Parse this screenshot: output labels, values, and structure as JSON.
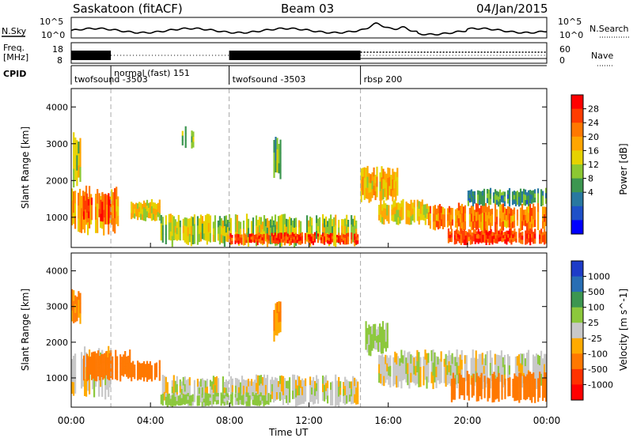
{
  "header": {
    "station": "Saskatoon (fitACF)",
    "beam": "Beam 03",
    "date": "04/Jan/2015"
  },
  "aux_panel": {
    "nsky_label": "N.Sky",
    "nsky_ticks": [
      "10^5",
      "10^0"
    ],
    "nsearch_label": "N.Search",
    "nsearch_ticks": [
      "10^5",
      "10^0"
    ],
    "freq_label": "Freq.",
    "freq_unit": "[MHz]",
    "freq_ticks": [
      "18",
      "8"
    ],
    "nave_label": "Nave",
    "nave_ticks": [
      "60",
      "0"
    ],
    "cpid_label": "CPID",
    "cpid_segments": [
      {
        "name": "twofsound -3503",
        "start_h": 0.0,
        "end_h": 2.0
      },
      {
        "name": "normal (fast) 151",
        "start_h": 2.0,
        "end_h": 7.97
      },
      {
        "name": "twofsound -3503",
        "start_h": 7.97,
        "end_h": 14.6
      },
      {
        "name": "rbsp 200",
        "start_h": 14.6,
        "end_h": 24.0
      }
    ]
  },
  "power_colorbar": {
    "label": "Power [dB]",
    "ticks": [
      "28",
      "24",
      "20",
      "16",
      "12",
      "8",
      "4"
    ],
    "colors": [
      "#ff0000",
      "#ff3c00",
      "#ff7800",
      "#ffa500",
      "#e6d200",
      "#8cc832",
      "#3c9650",
      "#2878a0",
      "#1e50c8",
      "#0000ff"
    ]
  },
  "velocity_colorbar": {
    "label": "Velocity [m s^-1]",
    "ticks": [
      "1000",
      "500",
      "100",
      "25",
      "-25",
      "-100",
      "-500",
      "-1000"
    ],
    "colors": [
      "#1e3cc8",
      "#286eb4",
      "#3c9650",
      "#8cc83c",
      "#c8c8c8",
      "#ffaa00",
      "#ff7800",
      "#ff3200",
      "#ff0000"
    ]
  },
  "chart_data": [
    {
      "type": "heatmap",
      "title": "Power",
      "xlabel": "Time UT",
      "ylabel": "Slant Range [km]",
      "x_ticks": [
        "00:00",
        "04:00",
        "08:00",
        "12:00",
        "16:00",
        "20:00",
        "00:00"
      ],
      "xlim_hours": [
        0,
        24
      ],
      "ylim": [
        180,
        4500
      ],
      "y_ticks": [
        1000,
        2000,
        3000,
        4000
      ],
      "echo_regions": [
        {
          "t0": 0.0,
          "t1": 0.5,
          "r0": 1700,
          "r1": 3400,
          "value": 16
        },
        {
          "t0": 0.0,
          "t1": 2.4,
          "r0": 500,
          "r1": 1900,
          "value": 22
        },
        {
          "t0": 0.6,
          "t1": 2.0,
          "r0": 800,
          "r1": 1700,
          "value": 28
        },
        {
          "t0": 3.0,
          "t1": 4.5,
          "r0": 900,
          "r1": 1500,
          "value": 18
        },
        {
          "t0": 5.5,
          "t1": 6.2,
          "r0": 2800,
          "r1": 3500,
          "value": 12
        },
        {
          "t0": 4.5,
          "t1": 14.5,
          "r0": 200,
          "r1": 1100,
          "value": 16
        },
        {
          "t0": 8.0,
          "t1": 14.5,
          "r0": 250,
          "r1": 600,
          "value": 28
        },
        {
          "t0": 10.2,
          "t1": 10.6,
          "r0": 2000,
          "r1": 3200,
          "value": 12
        },
        {
          "t0": 14.6,
          "t1": 16.5,
          "r0": 1400,
          "r1": 2400,
          "value": 20
        },
        {
          "t0": 15.5,
          "t1": 18.0,
          "r0": 800,
          "r1": 1500,
          "value": 18
        },
        {
          "t0": 18.0,
          "t1": 24.0,
          "r0": 600,
          "r1": 1400,
          "value": 24
        },
        {
          "t0": 19.0,
          "t1": 24.0,
          "r0": 250,
          "r1": 700,
          "value": 28
        },
        {
          "t0": 20.0,
          "t1": 24.0,
          "r0": 1300,
          "r1": 1800,
          "value": 10
        }
      ]
    },
    {
      "type": "heatmap",
      "title": "Velocity",
      "xlabel": "Time UT",
      "ylabel": "Slant Range [km]",
      "x_ticks": [
        "00:00",
        "04:00",
        "08:00",
        "12:00",
        "16:00",
        "20:00",
        "00:00"
      ],
      "xlim_hours": [
        0,
        24
      ],
      "ylim": [
        180,
        4500
      ],
      "y_ticks": [
        1000,
        2000,
        3000,
        4000
      ],
      "echo_regions": [
        {
          "t0": 0.0,
          "t1": 0.5,
          "r0": 2500,
          "r1": 3500,
          "value": -100
        },
        {
          "t0": 0.0,
          "t1": 2.0,
          "r0": 400,
          "r1": 1900,
          "value": 0
        },
        {
          "t0": 0.6,
          "t1": 3.0,
          "r0": 900,
          "r1": 1800,
          "value": -300
        },
        {
          "t0": 3.0,
          "t1": 4.5,
          "r0": 900,
          "r1": 1500,
          "value": -300
        },
        {
          "t0": 4.5,
          "t1": 14.5,
          "r0": 200,
          "r1": 1100,
          "value": 0
        },
        {
          "t0": 4.5,
          "t1": 10.0,
          "r0": 200,
          "r1": 600,
          "value": 50
        },
        {
          "t0": 10.2,
          "t1": 10.6,
          "r0": 2000,
          "r1": 3200,
          "value": -100
        },
        {
          "t0": 14.6,
          "t1": 16.0,
          "r0": 1600,
          "r1": 2600,
          "value": 50
        },
        {
          "t0": 15.5,
          "t1": 24.0,
          "r0": 700,
          "r1": 1800,
          "value": 0
        },
        {
          "t0": 19.0,
          "t1": 24.0,
          "r0": 300,
          "r1": 1200,
          "value": -300
        }
      ]
    }
  ]
}
